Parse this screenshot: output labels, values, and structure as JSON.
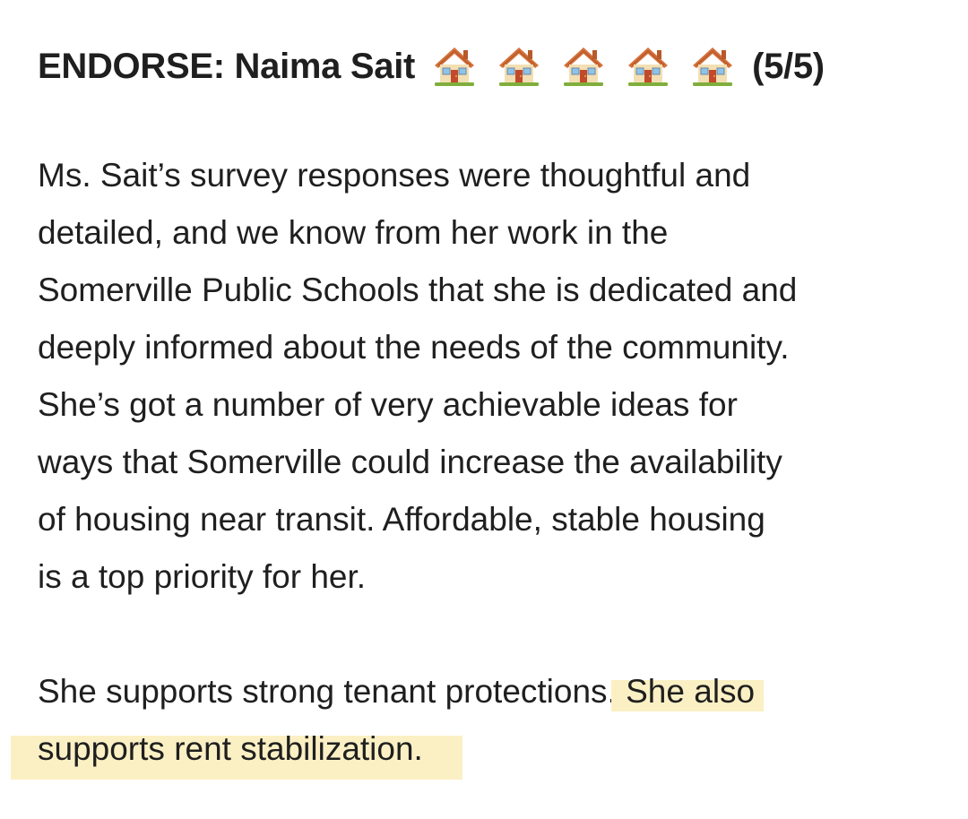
{
  "heading": {
    "prefix": "ENDORSE: Naima Sait",
    "icon": "house-icon",
    "house_count": 5,
    "rating_text": "(5/5)"
  },
  "paragraph1": {
    "lines": [
      "Ms. Sait’s survey responses were thoughtful and",
      "detailed, and we know from her work in the",
      "Somerville Public Schools that she is dedicated and",
      "deeply informed about the needs of the community.",
      "She’s got a number of very achievable ideas for",
      "ways that Somerville could increase the availability",
      "of housing near transit. Affordable, stable housing",
      "is a top priority for her."
    ]
  },
  "paragraph2": {
    "line1_plain": "She supports strong tenant protections.",
    "line1_highlighted": " She also",
    "line2_highlighted": "supports rent stabilization."
  },
  "colors": {
    "text": "#1f1f1f",
    "highlight": "#fbf0c4",
    "background": "#ffffff"
  }
}
